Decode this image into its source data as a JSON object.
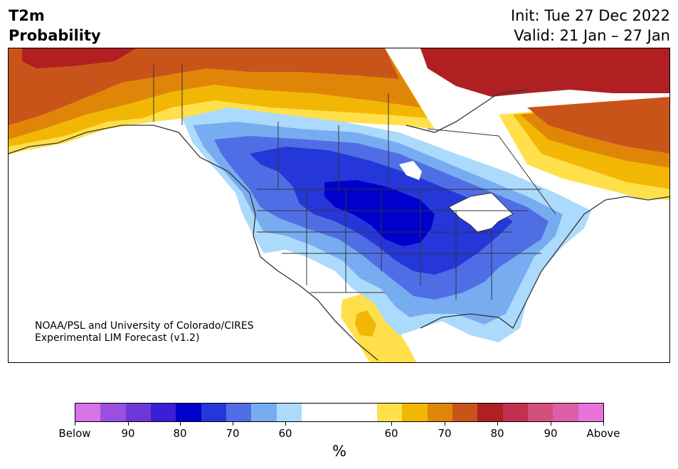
{
  "header": {
    "title_line1": "T2m",
    "title_line2": "Probability",
    "init_text": "Init: Tue 27 Dec 2022",
    "valid_text": "Valid: 21 Jan – 27 Jan"
  },
  "credit": {
    "line1": "NOAA/PSL and University of Colorado/CIRES",
    "line2": "Experimental LIM Forecast (v1.2)"
  },
  "colorbar": {
    "colors": [
      "#d872e8",
      "#9b4fe0",
      "#6a38d8",
      "#3a1fd6",
      "#0000cc",
      "#2637d9",
      "#4f6ee6",
      "#78acf0",
      "#acdafc",
      "#ffffff",
      "#ffe04a",
      "#f2b705",
      "#df8608",
      "#c9541a",
      "#b01f22",
      "#c33050",
      "#d1507c",
      "#dc5fa8",
      "#e872dc"
    ],
    "labels": [
      "Below",
      "90",
      "80",
      "70",
      "60",
      "60",
      "70",
      "80",
      "90",
      "Above"
    ],
    "unit": "%"
  },
  "map_colors": {
    "land": "#ffffff",
    "ocean": "#ffffff",
    "border": "#333333",
    "lake": "#ffffff"
  }
}
